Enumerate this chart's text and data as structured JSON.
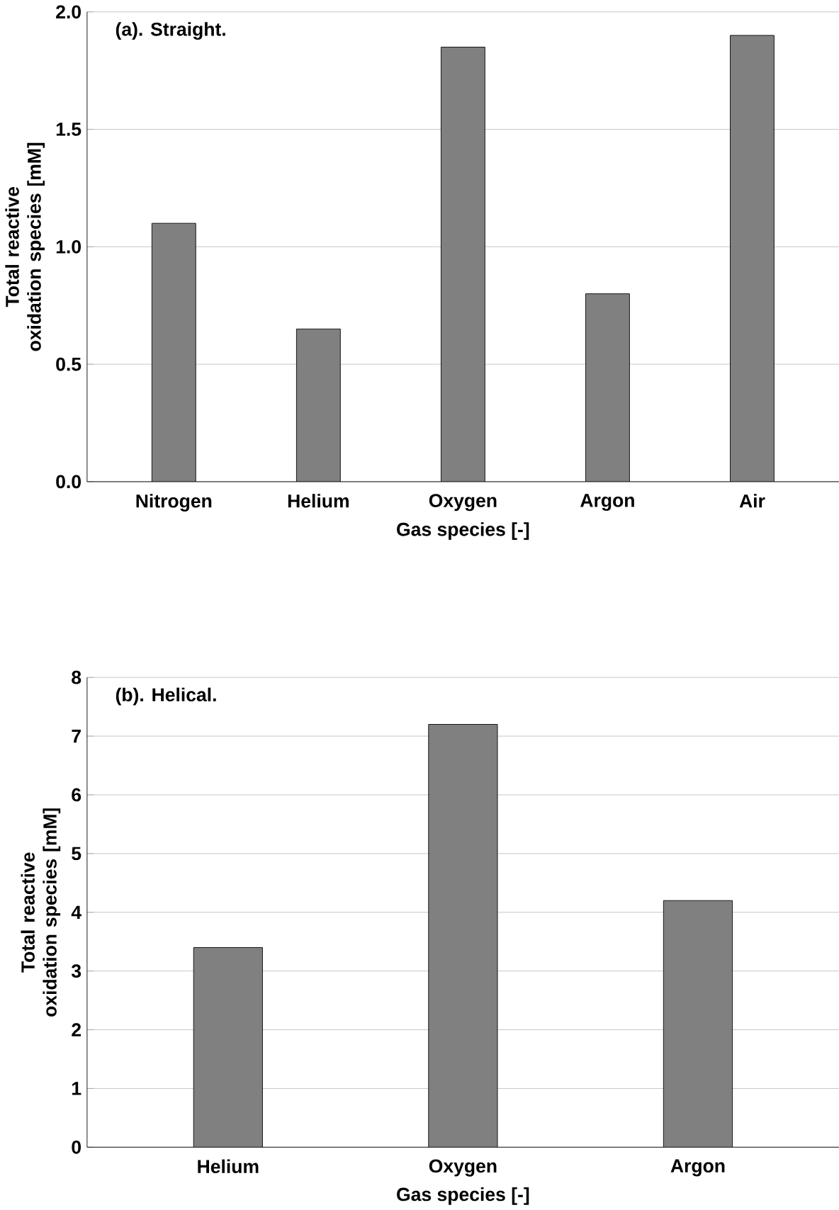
{
  "chart_data": [
    {
      "type": "bar",
      "annotations": [
        "(a). Straight."
      ],
      "xlabel": "Gas species [-]",
      "ylabel": "Total reactive oxidation species [mM]",
      "categories": [
        "Nitrogen",
        "Helium",
        "Oxygen",
        "Argon",
        "Air"
      ],
      "values": [
        1.1,
        0.65,
        1.85,
        0.8,
        1.9
      ],
      "color": "#808080",
      "ylim": [
        0,
        2
      ],
      "yticks": [
        {
          "value": 0,
          "label": "0.0"
        },
        {
          "value": 0.5,
          "label": "0.5"
        },
        {
          "value": 1,
          "label": "1.0"
        },
        {
          "value": 1.5,
          "label": "1.5"
        },
        {
          "value": 2,
          "label": "2.0"
        }
      ],
      "grid": "y"
    },
    {
      "type": "bar",
      "annotations": [
        "(b). Helical."
      ],
      "xlabel": "Gas species [-]",
      "ylabel": "Total reactive oxidation species [mM]",
      "categories": [
        "Helium",
        "Oxygen",
        "Argon"
      ],
      "values": [
        3.4,
        7.2,
        4.2
      ],
      "color": "#808080",
      "ylim": [
        0,
        8
      ],
      "yticks": [
        0,
        1,
        2,
        3,
        4,
        5,
        6,
        7,
        8
      ],
      "grid": "y"
    }
  ]
}
